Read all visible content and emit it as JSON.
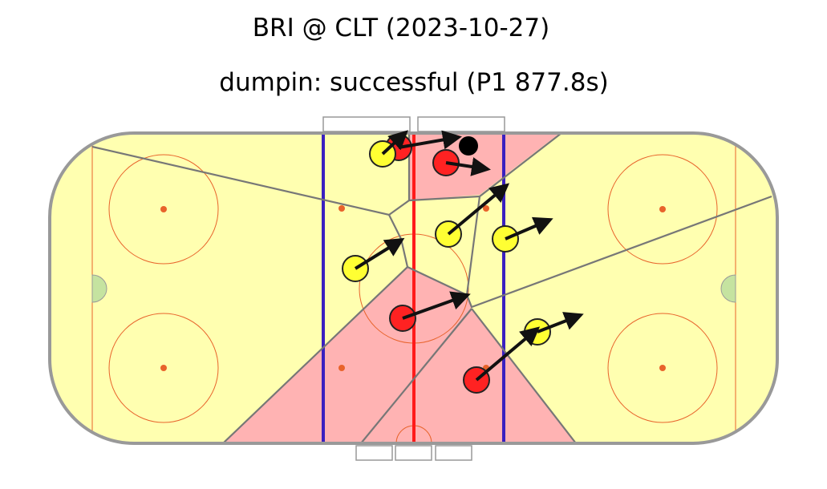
{
  "header": {
    "title": "BRI @ CLT (2023-10-27)",
    "subtitle": "dumpin: successful (P1 877.8s)"
  }
}
